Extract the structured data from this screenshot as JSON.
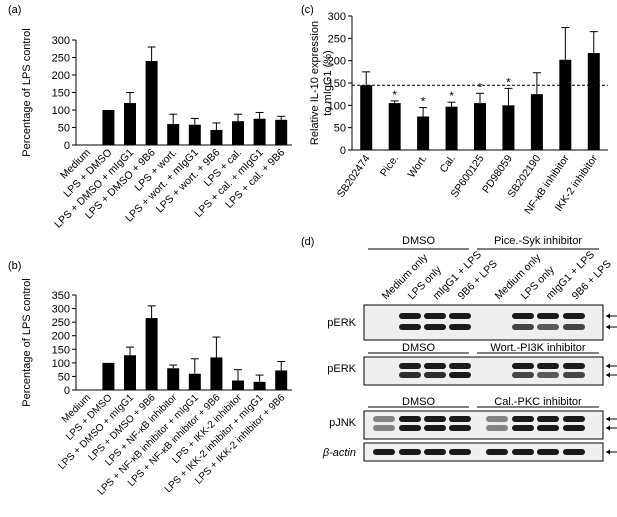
{
  "panel_labels": [
    "(a)",
    "(b)",
    "(c)",
    "(d)"
  ],
  "chart_data": [
    {
      "panel": "(a)",
      "type": "bar",
      "ylabel": "Percentage of LPS control",
      "ylim": [
        0,
        300
      ],
      "yticks": [
        0,
        50,
        100,
        150,
        200,
        250,
        300
      ],
      "categories": [
        "Medium",
        "LPS + DMSO",
        "LPS + DMSO + mIgG1",
        "LPS + DMSO + 9B6",
        "LPS + wort.",
        "LPS + wort. + mIgG1",
        "LPS + wort. + 9B6",
        "LPS + cal.",
        "LPS + cal. + mIgG1",
        "LPS + cal. + 9B6"
      ],
      "values": [
        0,
        100,
        120,
        240,
        60,
        58,
        43,
        68,
        75,
        72
      ],
      "errors": [
        0,
        0,
        30,
        40,
        28,
        18,
        20,
        20,
        18,
        10
      ],
      "legend": "none"
    },
    {
      "panel": "(b)",
      "type": "bar",
      "ylabel": "Percentage of LPS control",
      "ylim": [
        0,
        350
      ],
      "yticks": [
        0,
        50,
        100,
        150,
        200,
        250,
        300,
        350
      ],
      "categories": [
        "Medium",
        "LPS + DMSO",
        "LPS + DMSO + mIgG1",
        "LPS + DMSO + 9B6",
        "LPS + NF-κB inhibitor",
        "LPS + NF-κB inhibitor + mIgG1",
        "LPS + NF-κB inhibitor + 9B6",
        "LPS + IKK-2 inhibitor",
        "LPS + IKK-2 inhibitor + mIgG1",
        "LPS + IKK-2 inhibitor + 9B6"
      ],
      "values": [
        0,
        100,
        128,
        265,
        80,
        60,
        120,
        35,
        30,
        72
      ],
      "errors": [
        0,
        0,
        30,
        45,
        12,
        55,
        75,
        40,
        25,
        33
      ],
      "legend": "none"
    },
    {
      "panel": "(c)",
      "type": "bar",
      "ylabel_lines": [
        "Relative IL-10 expression",
        "to mIgG1 (%)"
      ],
      "ylim": [
        0,
        300
      ],
      "yticks": [
        0,
        50,
        100,
        150,
        200,
        250,
        300
      ],
      "categories": [
        "SB202474",
        "Pice.",
        "Wort.",
        "Cal.",
        "SP600125",
        "PD98059",
        "SB202190",
        "NF-κB inhibitor",
        "IKK-2 inhibitor"
      ],
      "values": [
        145,
        105,
        75,
        97,
        105,
        100,
        125,
        202,
        217
      ],
      "errors": [
        30,
        5,
        20,
        10,
        22,
        38,
        48,
        72,
        48
      ],
      "significance": [
        "",
        "*",
        "*",
        "*",
        "*",
        "*",
        "",
        "",
        ""
      ],
      "reference_line": 145,
      "legend": "none"
    }
  ],
  "blot": {
    "groups_top": [
      "DMSO",
      "Pice.-Syk inhibitor"
    ],
    "lane_labels": [
      "Medium only",
      "LPS only",
      "mIgG1 + LPS",
      "9B6 + LPS",
      "Medium only",
      "LPS only",
      "mIgG1 + LPS",
      "9B6 + LPS"
    ],
    "rows": [
      {
        "label": "pERK",
        "group_left": "",
        "group_right": ""
      },
      {
        "label": "pERK",
        "group_left": "DMSO",
        "group_right": "Wort.-PI3K inhibitor"
      },
      {
        "label": "pJNK",
        "group_left": "DMSO",
        "group_right": "Cal.-PKC inhibitor"
      },
      {
        "label": "β-actin",
        "group_left": "",
        "group_right": ""
      }
    ],
    "colors": {
      "band": "#1a1a1a",
      "background": "#efefef"
    }
  },
  "colors": {
    "bar": "#000000",
    "axis": "#000000"
  }
}
